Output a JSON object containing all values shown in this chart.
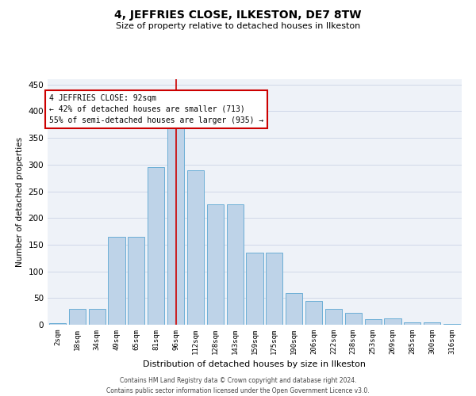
{
  "title": "4, JEFFRIES CLOSE, ILKESTON, DE7 8TW",
  "subtitle": "Size of property relative to detached houses in Ilkeston",
  "xlabel": "Distribution of detached houses by size in Ilkeston",
  "ylabel": "Number of detached properties",
  "footer_line1": "Contains HM Land Registry data © Crown copyright and database right 2024.",
  "footer_line2": "Contains public sector information licensed under the Open Government Licence v3.0.",
  "categories": [
    "2sqm",
    "18sqm",
    "34sqm",
    "49sqm",
    "65sqm",
    "81sqm",
    "96sqm",
    "112sqm",
    "128sqm",
    "143sqm",
    "159sqm",
    "175sqm",
    "190sqm",
    "206sqm",
    "222sqm",
    "238sqm",
    "253sqm",
    "269sqm",
    "285sqm",
    "300sqm",
    "316sqm"
  ],
  "values": [
    3,
    30,
    30,
    165,
    165,
    295,
    370,
    290,
    225,
    225,
    135,
    135,
    60,
    44,
    30,
    22,
    10,
    12,
    5,
    4,
    2
  ],
  "bar_color": "#bed3e8",
  "bar_edge_color": "#6baed6",
  "grid_color": "#d0d8e8",
  "bg_color": "#eef2f8",
  "property_line_x": 6.0,
  "annotation_text_line1": "4 JEFFRIES CLOSE: 92sqm",
  "annotation_text_line2": "← 42% of detached houses are smaller (713)",
  "annotation_text_line3": "55% of semi-detached houses are larger (935) →",
  "vline_color": "#cc0000",
  "annotation_box_color": "#ffffff",
  "annotation_box_edge": "#cc0000",
  "ylim": [
    0,
    460
  ],
  "yticks": [
    0,
    50,
    100,
    150,
    200,
    250,
    300,
    350,
    400,
    450
  ]
}
